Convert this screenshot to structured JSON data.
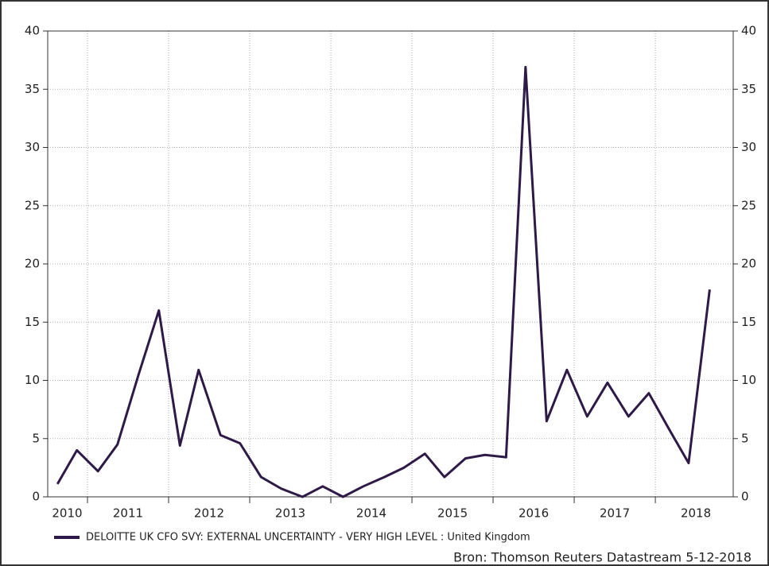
{
  "chart_data": {
    "type": "line",
    "x": [
      2010.63,
      2010.87,
      2011.13,
      2011.37,
      2011.63,
      2011.88,
      2012.14,
      2012.37,
      2012.64,
      2012.88,
      2013.14,
      2013.39,
      2013.65,
      2013.9,
      2014.15,
      2014.4,
      2014.66,
      2014.9,
      2015.16,
      2015.4,
      2015.66,
      2015.9,
      2016.16,
      2016.4,
      2016.66,
      2016.91,
      2017.16,
      2017.41,
      2017.67,
      2017.92,
      2018.17,
      2018.41,
      2018.67
    ],
    "series": [
      {
        "name": "DELOITTE UK CFO SVY: EXTERNAL UNCERTAINTY - VERY HIGH LEVEL : United Kingdom",
        "color": "#2e1a47",
        "values": [
          1.1,
          4.0,
          2.2,
          4.5,
          10.5,
          16.0,
          4.4,
          10.9,
          5.3,
          4.6,
          1.7,
          0.7,
          0.0,
          0.9,
          0.0,
          0.9,
          1.7,
          2.5,
          3.7,
          1.7,
          3.3,
          3.6,
          3.4,
          36.9,
          6.5,
          10.9,
          6.9,
          9.8,
          6.9,
          8.9,
          5.8,
          2.9,
          17.8
        ]
      }
    ],
    "xlim": [
      2010.51,
      2018.96
    ],
    "xticks": [
      {
        "value": 2010.75,
        "label": "2010"
      },
      {
        "value": 2011.5,
        "label": "2011"
      },
      {
        "value": 2012.5,
        "label": "2012"
      },
      {
        "value": 2013.5,
        "label": "2013"
      },
      {
        "value": 2014.5,
        "label": "2014"
      },
      {
        "value": 2015.5,
        "label": "2015"
      },
      {
        "value": 2016.5,
        "label": "2016"
      },
      {
        "value": 2017.5,
        "label": "2017"
      },
      {
        "value": 2018.5,
        "label": "2018"
      }
    ],
    "xgrid": [
      2011,
      2012,
      2013,
      2014,
      2015,
      2016,
      2017,
      2018
    ],
    "ylim": [
      0,
      40
    ],
    "yticks": [
      0,
      5,
      10,
      15,
      20,
      25,
      30,
      35,
      40
    ],
    "y2lim": [
      0,
      40
    ],
    "y2ticks": [
      0,
      5,
      10,
      15,
      20,
      25,
      30,
      35,
      40
    ],
    "grid": true,
    "source": "Bron: Thomson Reuters Datastream 5-12-2018"
  }
}
